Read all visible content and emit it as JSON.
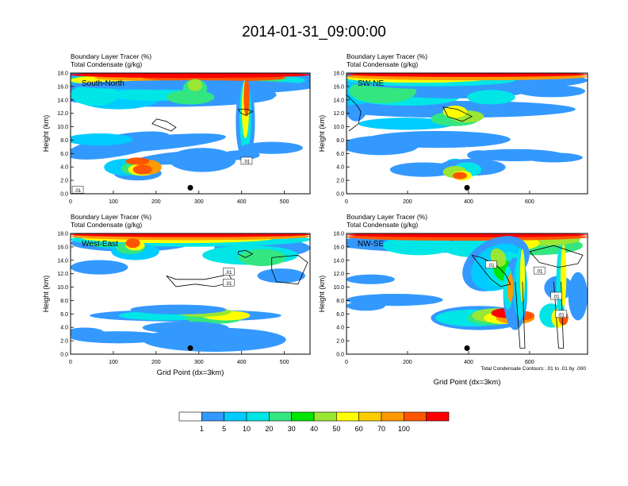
{
  "page": {
    "title": "2014-01-31_09:00:00"
  },
  "colorbar": {
    "labels": [
      "1",
      "5",
      "10",
      "20",
      "30",
      "40",
      "50",
      "60",
      "70",
      "100"
    ],
    "colors": [
      "#ffffff",
      "#3399ff",
      "#00ccff",
      "#00e6e6",
      "#33e680",
      "#00e600",
      "#99e633",
      "#ffff00",
      "#ffcc00",
      "#ff9900",
      "#ff5500",
      "#ff0000"
    ]
  },
  "chart_data": [
    {
      "type": "heatmap",
      "title_line1": "Boundary Layer Tracer   (%)",
      "title_line2": "Total Condensate   (g/kg)",
      "panel_label": "South-North",
      "ylabel": "Height (km)",
      "xlabel": "",
      "xlim": [
        0,
        560
      ],
      "ylim": [
        0,
        18
      ],
      "xticks": [
        "0",
        "100",
        "200",
        "300",
        "400",
        "500"
      ],
      "yticks": [
        "0.0",
        "2.0",
        "4.0",
        "6.0",
        "8.0",
        "10.0",
        "12.0",
        "14.0",
        "16.0",
        "18.0"
      ],
      "contour_labels": [
        ".01",
        ".01"
      ],
      "marker": {
        "x": 280,
        "y": 0.9
      }
    },
    {
      "type": "heatmap",
      "title_line1": "Boundary Layer Tracer   (%)",
      "title_line2": "Total Condensate   (g/kg)",
      "panel_label": "SW-NE",
      "ylabel": "Height (km)",
      "xlabel": "",
      "xlim": [
        0,
        790
      ],
      "ylim": [
        0,
        18
      ],
      "xticks": [
        "0",
        "200",
        "400",
        "600"
      ],
      "yticks": [
        "0.0",
        "2.0",
        "4.0",
        "6.0",
        "8.0",
        "10.0",
        "12.0",
        "14.0",
        "16.0",
        "18.0"
      ],
      "contour_labels": [],
      "marker": {
        "x": 395,
        "y": 0.9
      }
    },
    {
      "type": "heatmap",
      "title_line1": "Boundary Layer Tracer   (%)",
      "title_line2": "Total Condensate   (g/kg)",
      "panel_label": "West-East",
      "ylabel": "Height (km)",
      "xlabel": "Grid Point (dx=3km)",
      "xlim": [
        0,
        560
      ],
      "ylim": [
        0,
        18
      ],
      "xticks": [
        "0",
        "100",
        "200",
        "300",
        "400",
        "500"
      ],
      "yticks": [
        "0.0",
        "2.0",
        "4.0",
        "6.0",
        "8.0",
        "10.0",
        "12.0",
        "14.0",
        "16.0",
        "18.0"
      ],
      "contour_labels": [
        ".01",
        ".01"
      ],
      "marker": {
        "x": 280,
        "y": 0.9
      }
    },
    {
      "type": "heatmap",
      "title_line1": "Boundary Layer Tracer   (%)",
      "title_line2": "Total Condensate   (g/kg)",
      "panel_label": "NW-SE",
      "ylabel": "Height (km)",
      "xlabel": "Grid Point (dx=3km)",
      "xlim": [
        0,
        790
      ],
      "ylim": [
        0,
        18
      ],
      "xticks": [
        "0",
        "200",
        "400",
        "600"
      ],
      "yticks": [
        "0.0",
        "2.0",
        "4.0",
        "6.0",
        "8.0",
        "10.0",
        "12.0",
        "14.0",
        "16.0",
        "18.0"
      ],
      "contour_labels": [
        ".01",
        ".01",
        ".01",
        ".01"
      ],
      "marker": {
        "x": 395,
        "y": 0.9
      },
      "footnote": "Total Condensate Contours: .01 to .01 by .000"
    }
  ]
}
